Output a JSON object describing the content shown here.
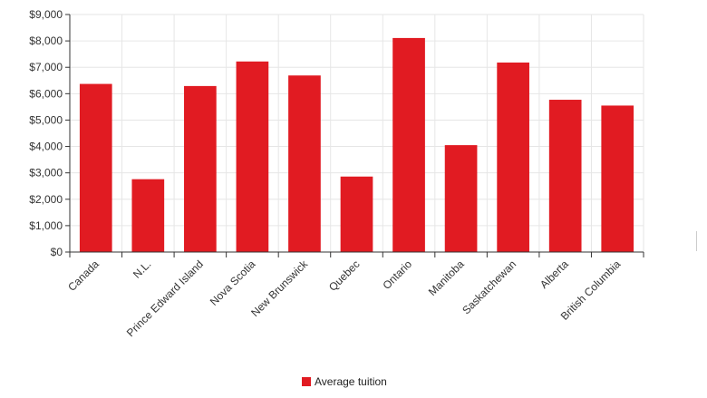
{
  "chart_data": {
    "type": "bar",
    "categories": [
      "Canada",
      "N.L.",
      "Prince Edward Island",
      "Nova Scotia",
      "New Brunswick",
      "Quebec",
      "Ontario",
      "Manitoba",
      "Saskatchewan",
      "Alberta",
      "British Columbia"
    ],
    "series": [
      {
        "name": "Average tuition",
        "values": [
          6370,
          2760,
          6290,
          7220,
          6690,
          2860,
          8110,
          4050,
          7180,
          5770,
          5550
        ],
        "color": "#e11b22"
      }
    ],
    "y_ticks": [
      "$0",
      "$1,000",
      "$2,000",
      "$3,000",
      "$4,000",
      "$5,000",
      "$6,000",
      "$7,000",
      "$8,000",
      "$9,000"
    ],
    "ylim": [
      0,
      9000
    ],
    "grid": true,
    "legend_position": "bottom-center",
    "x_tick_rotation_deg": -45
  },
  "legend": {
    "label": "Average tuition",
    "color": "#e11b22"
  }
}
